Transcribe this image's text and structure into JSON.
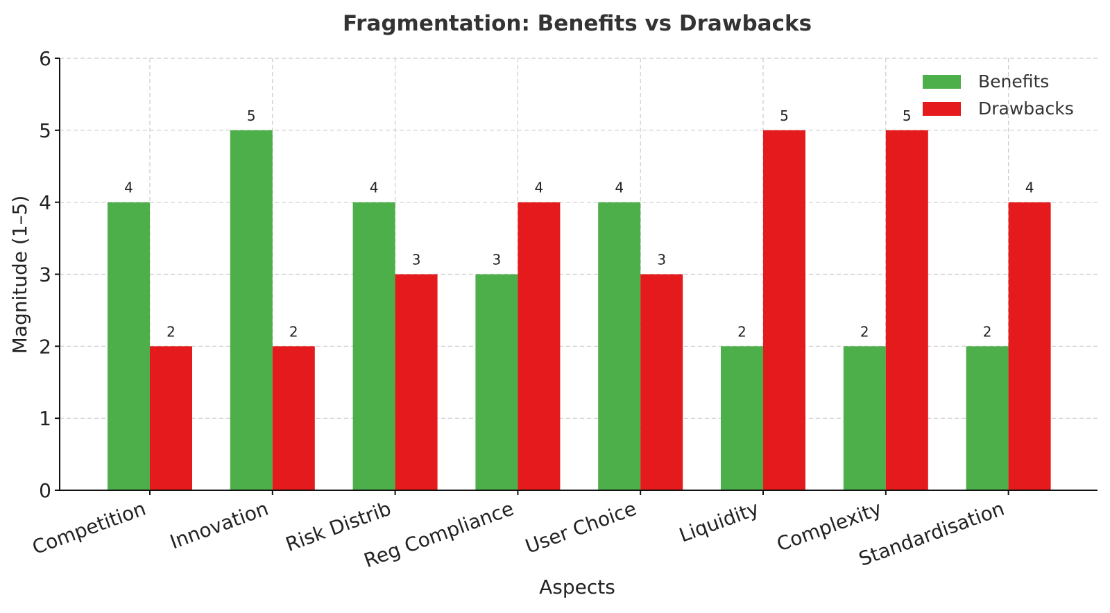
{
  "chart_data": {
    "type": "bar",
    "title": "Fragmentation: Benefits vs Drawbacks",
    "xlabel": "Aspects",
    "ylabel": "Magnitude (1–5)",
    "categories": [
      "Competition",
      "Innovation",
      "Risk Distrib",
      "Reg Compliance",
      "User Choice",
      "Liquidity",
      "Complexity",
      "Standardisation"
    ],
    "series": [
      {
        "name": "Benefits",
        "color": "#4daf4a",
        "values": [
          4,
          5,
          4,
          3,
          4,
          2,
          2,
          2
        ]
      },
      {
        "name": "Drawbacks",
        "color": "#e41a1c",
        "values": [
          2,
          2,
          3,
          4,
          3,
          5,
          5,
          4
        ]
      }
    ],
    "ylim": [
      0,
      6
    ],
    "yticks": [
      0,
      1,
      2,
      3,
      4,
      5,
      6
    ],
    "grid": true,
    "legend_position": "top-right",
    "data_labels": true
  }
}
